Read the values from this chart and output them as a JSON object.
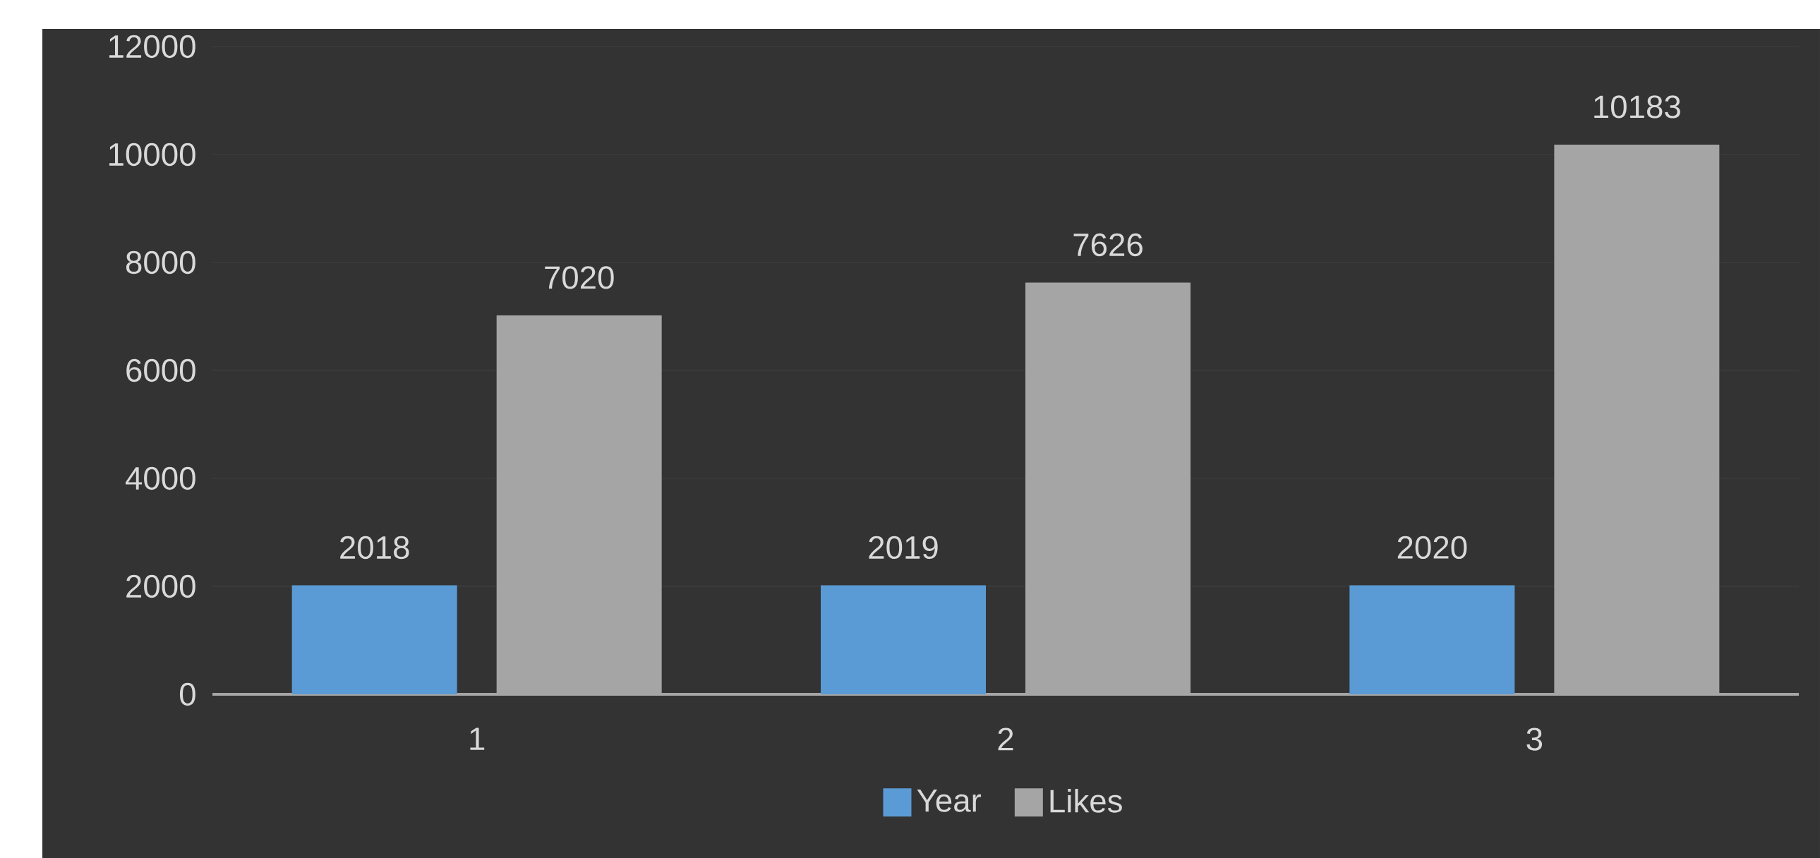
{
  "chart_data": {
    "type": "bar",
    "categories": [
      "1",
      "2",
      "3"
    ],
    "series": [
      {
        "name": "Year",
        "color": "#5b9bd5",
        "values": [
          2018,
          2019,
          2020
        ]
      },
      {
        "name": "Likes",
        "color": "#a5a5a5",
        "values": [
          7020,
          7626,
          10183
        ]
      }
    ],
    "ylim": [
      0,
      12000
    ],
    "yticks": [
      0,
      2000,
      4000,
      6000,
      8000,
      10000,
      12000
    ],
    "grid": "y",
    "legend": "bottom",
    "data_labels": true
  }
}
